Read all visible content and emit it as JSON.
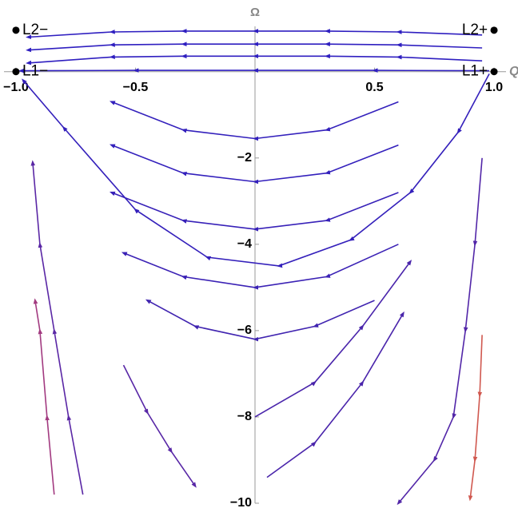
{
  "chart_data": {
    "type": "stream",
    "x_label": "Q",
    "y_label": "Ω",
    "xlim": [
      -1.05,
      1.05
    ],
    "ylim": [
      -10,
      1.05
    ],
    "xticks": [
      {
        "value": -1,
        "label": "−1.0"
      },
      {
        "value": -0.5,
        "label": "−0.5"
      },
      {
        "value": 0.5,
        "label": "0.5"
      },
      {
        "value": 1,
        "label": "1.0"
      }
    ],
    "yticks": [
      {
        "value": -2,
        "label": "−2"
      },
      {
        "value": -4,
        "label": "−4"
      },
      {
        "value": -6,
        "label": "−6"
      },
      {
        "value": -8,
        "label": "−8"
      },
      {
        "value": -10,
        "label": "−10"
      }
    ],
    "points": [
      {
        "label": "L1−",
        "x": -1,
        "y": 0
      },
      {
        "label": "L1+",
        "x": 1,
        "y": 0
      },
      {
        "label": "L2−",
        "x": -1,
        "y": 0.96
      },
      {
        "label": "L2+",
        "x": 1,
        "y": 0.96
      }
    ],
    "series": [
      {
        "color": "#2f1fc0",
        "x": [
          0.95,
          0.6,
          0.3,
          0,
          -0.3,
          -0.6,
          -0.95
        ],
        "values": [
          0.85,
          0.92,
          0.94,
          0.94,
          0.94,
          0.92,
          0.8
        ]
      },
      {
        "color": "#2f1fc0",
        "x": [
          0.95,
          0.6,
          0.3,
          0,
          -0.3,
          -0.6,
          -0.95
        ],
        "values": [
          0.55,
          0.62,
          0.64,
          0.64,
          0.64,
          0.62,
          0.5
        ]
      },
      {
        "color": "#2f1fc0",
        "x": [
          0.95,
          0.6,
          0.3,
          0,
          -0.3,
          -0.6,
          -0.95
        ],
        "values": [
          0.25,
          0.34,
          0.36,
          0.36,
          0.36,
          0.34,
          0.2
        ]
      },
      {
        "color": "#2f1fc0",
        "x": [
          0.98,
          0.5,
          0,
          -0.5,
          -0.98
        ],
        "values": [
          0.02,
          0.03,
          0.03,
          0.03,
          0.02
        ]
      },
      {
        "color": "#3420bb",
        "x": [
          0.98,
          0.85,
          0.65,
          0.4,
          0.1,
          -0.2,
          -0.5,
          -0.8,
          -0.97
        ],
        "values": [
          -0.05,
          -1.4,
          -2.8,
          -3.9,
          -4.5,
          -4.3,
          -3.2,
          -1.3,
          -0.2
        ]
      },
      {
        "color": "#3320bc",
        "x": [
          0.6,
          0.3,
          0,
          -0.3,
          -0.6
        ],
        "values": [
          -0.7,
          -1.35,
          -1.55,
          -1.35,
          -0.7
        ]
      },
      {
        "color": "#3320bc",
        "x": [
          0.6,
          0.3,
          0,
          -0.3,
          -0.6
        ],
        "values": [
          -1.7,
          -2.35,
          -2.55,
          -2.35,
          -1.7
        ]
      },
      {
        "color": "#3721b8",
        "x": [
          0.6,
          0.3,
          0,
          -0.3,
          -0.6
        ],
        "values": [
          -2.8,
          -3.45,
          -3.65,
          -3.45,
          -2.8
        ]
      },
      {
        "color": "#3b22b5",
        "x": [
          0.6,
          0.3,
          0,
          -0.3,
          -0.55
        ],
        "values": [
          -4.0,
          -4.75,
          -5.0,
          -4.75,
          -4.2
        ]
      },
      {
        "color": "#4024b0",
        "x": [
          0.5,
          0.25,
          0,
          -0.25,
          -0.45
        ],
        "values": [
          -5.3,
          -5.9,
          -6.2,
          -5.9,
          -5.3
        ]
      },
      {
        "color": "#5a27a5",
        "x": [
          -0.72,
          -0.78,
          -0.84,
          -0.9,
          -0.93
        ],
        "values": [
          -9.8,
          -8,
          -6,
          -4,
          -2.1
        ]
      },
      {
        "color": "#a23a80",
        "x": [
          -0.84,
          -0.87,
          -0.9,
          -0.92
        ],
        "values": [
          -9.8,
          -8,
          -6,
          -5.3
        ]
      },
      {
        "color": "#5226a8",
        "x": [
          0.95,
          0.92,
          0.88,
          0.83,
          0.75,
          0.6
        ],
        "values": [
          -2,
          -4,
          -6,
          -8,
          -9,
          -10
        ]
      },
      {
        "color": "#d0584f",
        "x": [
          0.95,
          0.94,
          0.92,
          0.9
        ],
        "values": [
          -6.1,
          -7.5,
          -9,
          -9.9
        ]
      },
      {
        "color": "#5827a6",
        "x": [
          -0.55,
          -0.45,
          -0.35,
          -0.25
        ],
        "values": [
          -6.8,
          -7.9,
          -8.8,
          -9.6
        ]
      },
      {
        "color": "#4a25ab",
        "x": [
          0.05,
          0.25,
          0.45,
          0.62
        ],
        "values": [
          -9.4,
          -8.6,
          -7.2,
          -5.6
        ]
      },
      {
        "color": "#4a25ab",
        "x": [
          0,
          0.25,
          0.45,
          0.65
        ],
        "values": [
          -8.0,
          -7.2,
          -5.9,
          -4.4
        ]
      }
    ]
  }
}
